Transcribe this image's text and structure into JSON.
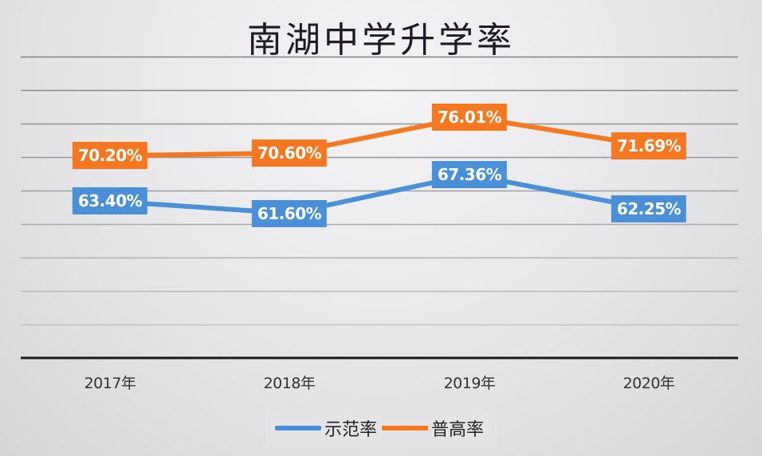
{
  "title": "南湖中学升学率",
  "colors": {
    "series_1": "#4a90d9",
    "series_2": "#f5771f",
    "gridline": "#b4b4b6",
    "axis": "#1a1a1a"
  },
  "x_labels": [
    "2017年",
    "2018年",
    "2019年",
    "2020年"
  ],
  "labels": {
    "series_1": [
      "63.40%",
      "61.60%",
      "67.36%",
      "62.25%"
    ],
    "series_2": [
      "70.20%",
      "70.60%",
      "76.01%",
      "71.69%"
    ]
  },
  "legend": [
    {
      "name": "示范率",
      "color": "#4a90d9"
    },
    {
      "name": "普高率",
      "color": "#f5771f"
    }
  ],
  "chart_data": {
    "type": "line",
    "title": "南湖中学升学率",
    "categories": [
      "2017年",
      "2018年",
      "2019年",
      "2020年"
    ],
    "series": [
      {
        "name": "示范率",
        "values": [
          63.4,
          61.6,
          67.36,
          62.25
        ],
        "color": "#4a90d9"
      },
      {
        "name": "普高率",
        "values": [
          70.2,
          70.6,
          76.01,
          71.69
        ],
        "color": "#f5771f"
      }
    ],
    "xlabel": "",
    "ylabel": "",
    "unit": "%",
    "ylim": [
      40,
      85
    ],
    "grid": true,
    "y_axis_visible": false,
    "data_labels": true,
    "legend_position": "bottom"
  }
}
